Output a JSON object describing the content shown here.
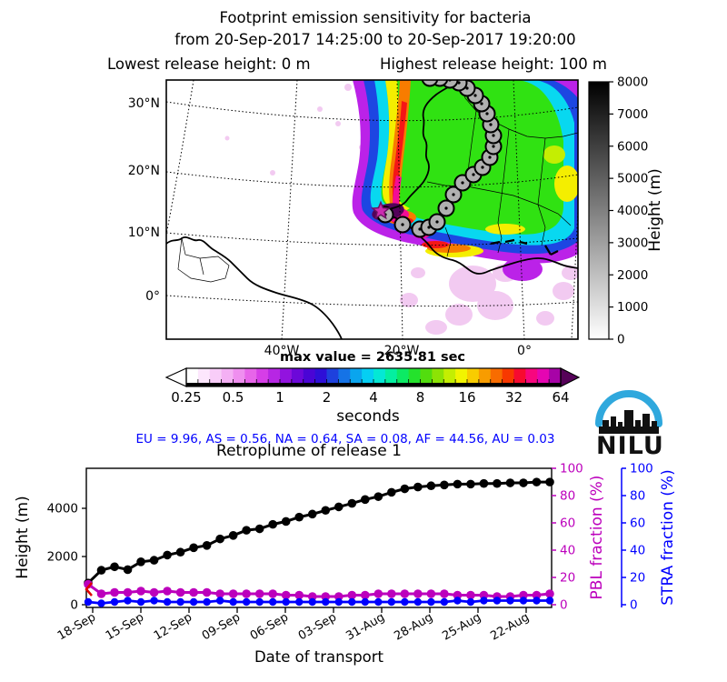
{
  "header": {
    "title_line1": "Footprint emission sensitivity for bacteria",
    "title_line2": "from 20-Sep-2017 14:25:00 to 20-Sep-2017 19:20:00",
    "release_low": "Lowest release height: 0 m",
    "release_high": "Highest release height: 100 m"
  },
  "map": {
    "lat_labels": [
      "30°N",
      "20°N",
      "10°N",
      "0°"
    ],
    "lon_labels": [
      "40°W",
      "20°W",
      "0°"
    ],
    "max_value_label": "max value = 2635.81 sec",
    "height_colorbar": {
      "label": "Height (m)",
      "ticks": [
        0,
        1000,
        2000,
        3000,
        4000,
        5000,
        6000,
        7000,
        8000
      ],
      "range": [
        0,
        8000
      ]
    },
    "footprint_colorbar": {
      "unit_label": "seconds",
      "ticks": [
        "0.25",
        "0.5",
        "1",
        "2",
        "4",
        "8",
        "16",
        "32",
        "64"
      ],
      "colors": [
        "#ffffff",
        "#fce6fc",
        "#f8cdf8",
        "#f4b0f4",
        "#ef8fef",
        "#e765e9",
        "#d63ee7",
        "#b726e4",
        "#9213df",
        "#6c08d9",
        "#4a05d5",
        "#2e0fd7",
        "#1e41dd",
        "#1573e6",
        "#0aa5ee",
        "#05cff3",
        "#04e8d5",
        "#04efa0",
        "#0cea64",
        "#24e22c",
        "#52dd0e",
        "#8ce305",
        "#c4ee02",
        "#f2f400",
        "#f8cc00",
        "#f89c00",
        "#f86c00",
        "#f83800",
        "#f70a30",
        "#f7067e",
        "#e505b2",
        "#a703a7"
      ],
      "arrow_left_color": "#ffffff",
      "arrow_right_color": "#560259"
    },
    "trajectory": {
      "marker": "gray-circle",
      "points": [
        [
          424,
          236
        ],
        [
          443,
          247
        ],
        [
          462,
          252
        ],
        [
          472,
          250
        ],
        [
          481,
          244
        ],
        [
          491,
          229
        ],
        [
          499,
          214
        ],
        [
          509,
          201
        ],
        [
          521,
          192
        ],
        [
          531,
          184
        ],
        [
          539,
          173
        ],
        [
          543,
          161
        ],
        [
          543,
          149
        ],
        [
          540,
          137
        ],
        [
          536,
          125
        ],
        [
          530,
          114
        ],
        [
          523,
          105
        ],
        [
          514,
          97
        ],
        [
          505,
          91
        ],
        [
          495,
          88
        ],
        [
          484,
          86
        ],
        [
          473,
          86
        ]
      ]
    },
    "source_star": [
      419,
      232
    ],
    "star_color": "#cc2bb0"
  },
  "fractions_line": {
    "text": "EU = 9.96,  AS = 0.56,  NA = 0.64,  SA = 0.08,  AF = 44.56,  AU = 0.03",
    "color": "#0000ff"
  },
  "logo": {
    "text": "NILU",
    "arc_color": "#2fa8dd"
  },
  "chart_data": {
    "type": "line",
    "title": "Retroplume of release 1",
    "xlabel": "Date of transport",
    "x_tick_labels": [
      "18-Sep",
      "15-Sep",
      "12-Sep",
      "09-Sep",
      "06-Sep",
      "03-Sep",
      "31-Aug",
      "28-Aug",
      "25-Aug",
      "22-Aug"
    ],
    "x_note": "time of transport runs backwards from release (20-Sep) at left; 36 evenly spaced samples",
    "axes": [
      {
        "label": "Height (m)",
        "side": "left",
        "color": "#000000",
        "ticks": [
          0,
          2000,
          4000
        ],
        "range": [
          0,
          5600
        ]
      },
      {
        "label": "PBL fraction (%)",
        "side": "right",
        "color": "#bc00bc",
        "ticks": [
          0,
          20,
          40,
          60,
          80,
          100
        ],
        "range": [
          0,
          100
        ]
      },
      {
        "label": "STRA fraction (%)",
        "side": "right-outer",
        "color": "#0000ff",
        "ticks": [
          0,
          20,
          40,
          60,
          80,
          100
        ],
        "range": [
          0,
          100
        ]
      }
    ],
    "series": [
      {
        "name": "Mean plume height",
        "color": "#000000",
        "axis": 0,
        "values": [
          900,
          1430,
          1575,
          1455,
          1780,
          1845,
          2060,
          2180,
          2365,
          2460,
          2730,
          2875,
          3090,
          3150,
          3335,
          3455,
          3635,
          3760,
          3915,
          4060,
          4205,
          4365,
          4485,
          4665,
          4810,
          4885,
          4935,
          4970,
          5005,
          5005,
          5030,
          5030,
          5055,
          5055,
          5090,
          5090
        ]
      },
      {
        "name": "PBL fraction",
        "color": "#bc00bc",
        "axis": 1,
        "values": [
          15,
          8,
          9,
          9,
          10,
          9,
          10,
          9,
          9,
          9,
          8,
          8,
          8,
          8,
          8,
          7,
          7,
          6,
          6,
          6,
          7,
          7,
          8,
          8,
          8,
          8,
          8,
          8,
          7,
          7,
          7,
          6,
          6,
          7,
          7,
          8
        ]
      },
      {
        "name": "STRA fraction",
        "color": "#0000ff",
        "axis": 2,
        "values": [
          2,
          1,
          2,
          3,
          2,
          3,
          2,
          2,
          2,
          2,
          3,
          2,
          2,
          2,
          2,
          2,
          2,
          2,
          2,
          2,
          2,
          2,
          2,
          2,
          2,
          2,
          2,
          2,
          3,
          2,
          3,
          3,
          3,
          3,
          3,
          3
        ]
      }
    ]
  }
}
